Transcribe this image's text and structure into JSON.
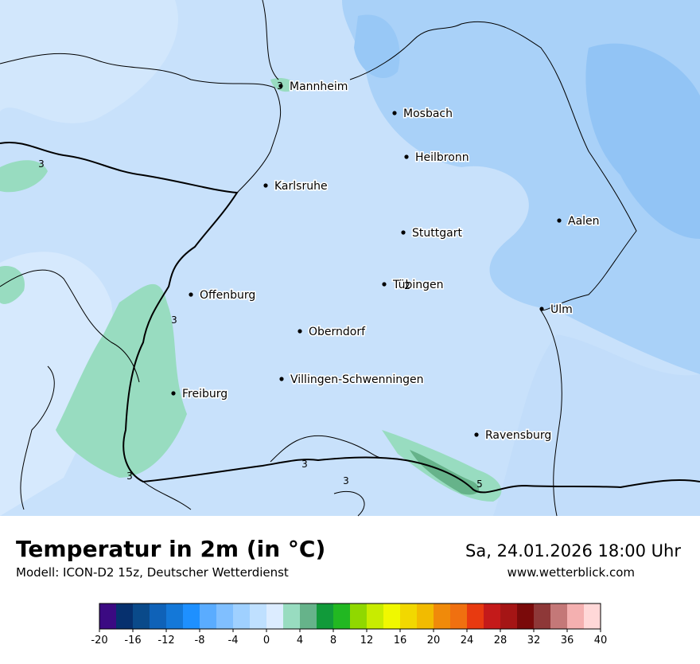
{
  "map": {
    "cities": [
      "Mannheim",
      "Mosbach",
      "Heilbronn",
      "Karlsruhe",
      "Aalen",
      "Stuttgart",
      "Tübingen",
      "Ulm",
      "Offenburg",
      "Oberndorf",
      "Villingen-Schwenningen",
      "Freiburg",
      "Ravensburg"
    ],
    "contour_labels": [
      "3",
      "3",
      "3",
      "2",
      "3",
      "3",
      "3",
      "5"
    ]
  },
  "footer": {
    "title": "Temperatur in 2m (in °C)",
    "subtitle": "Modell: ICON-D2 15z, Deutscher Wetterdienst",
    "datetime": "Sa, 24.01.2026 18:00 Uhr",
    "website": "www.wetterblick.com"
  },
  "colorbar": {
    "ticks": [
      -20,
      -16,
      -12,
      -8,
      -4,
      0,
      4,
      8,
      12,
      16,
      20,
      24,
      28,
      32,
      36,
      40
    ],
    "colors": [
      "#3b0a82",
      "#06306e",
      "#0a4a8a",
      "#0f62b8",
      "#1478d8",
      "#1e90ff",
      "#5aacff",
      "#80bfff",
      "#9fd0ff",
      "#bfe0ff",
      "#dcecff",
      "#98dcc0",
      "#66b38a",
      "#119a3a",
      "#22b822",
      "#90d800",
      "#c8ec00",
      "#f0f800",
      "#f2d800",
      "#f2bb00",
      "#f08a0a",
      "#f07010",
      "#e83a10",
      "#c41a1a",
      "#a51515",
      "#7a0a0a",
      "#8e3838",
      "#c47878",
      "#f4b0b0",
      "#ffd8d8"
    ]
  }
}
